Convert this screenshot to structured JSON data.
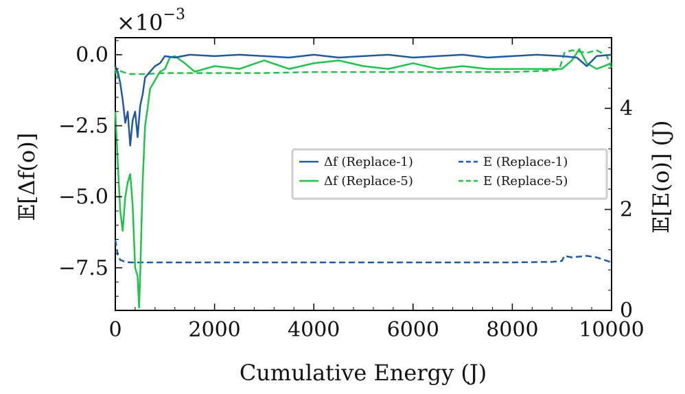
{
  "chart_data": {
    "type": "line",
    "title": "",
    "xlabel": "Cumulative Energy (J)",
    "ylabel_left": "𝔼[Δf(o)]",
    "ylabel_right": "𝔼[E(o)] (J)",
    "y_left_multiplier": "×10",
    "y_left_multiplier_exp": "−3",
    "xlim": [
      0,
      10000
    ],
    "ylim_left": [
      -9.0,
      0.6
    ],
    "ylim_right": [
      0,
      5.4
    ],
    "x_ticks": [
      0,
      2000,
      4000,
      6000,
      8000,
      10000
    ],
    "x_tick_labels": [
      "0",
      "2000",
      "4000",
      "6000",
      "8000",
      "10000"
    ],
    "y_left_ticks": [
      0.0,
      -2.5,
      -5.0,
      -7.5
    ],
    "y_left_tick_labels": [
      "0.0",
      "−2.5",
      "−5.0",
      "−7.5"
    ],
    "y_right_ticks": [
      0,
      2,
      4
    ],
    "y_right_tick_labels": [
      "0",
      "2",
      "4"
    ],
    "legend": {
      "position": "center-right",
      "entries": [
        {
          "label": "Δf (Replace-1)",
          "series": "df_r1"
        },
        {
          "label": "E (Replace-1)",
          "series": "e_r1"
        },
        {
          "label": "Δf (Replace-5)",
          "series": "df_r5"
        },
        {
          "label": "E (Replace-5)",
          "series": "e_r5"
        }
      ]
    },
    "series": [
      {
        "id": "df_r1",
        "name": "Δf (Replace-1)",
        "axis": "left",
        "style": "solid",
        "color": "#1f5aa0",
        "x": [
          0,
          50,
          100,
          150,
          200,
          250,
          300,
          350,
          400,
          450,
          500,
          550,
          600,
          650,
          700,
          800,
          900,
          1000,
          1200,
          1500,
          2000,
          2500,
          3000,
          3500,
          4000,
          4500,
          5000,
          5500,
          6000,
          6500,
          7000,
          7500,
          8000,
          8500,
          9000,
          9300,
          9500,
          9700,
          10000
        ],
        "y": [
          -0.4,
          -0.6,
          -1.0,
          -1.6,
          -2.4,
          -2.0,
          -3.2,
          -2.3,
          -2.0,
          -2.9,
          -1.8,
          -1.4,
          -0.8,
          -0.7,
          -0.6,
          -0.4,
          -0.3,
          -0.05,
          -0.1,
          0.0,
          -0.05,
          0.0,
          -0.05,
          -0.1,
          0.0,
          -0.1,
          -0.05,
          0.0,
          -0.1,
          -0.05,
          0.0,
          -0.1,
          -0.05,
          0.0,
          -0.05,
          -0.1,
          -0.4,
          -0.05,
          0.0
        ]
      },
      {
        "id": "df_r5",
        "name": "Δf (Replace-5)",
        "axis": "left",
        "style": "solid",
        "color": "#1fc24a",
        "x": [
          0,
          50,
          100,
          150,
          200,
          250,
          300,
          350,
          400,
          450,
          480,
          500,
          550,
          600,
          650,
          700,
          800,
          900,
          1000,
          1100,
          1200,
          1400,
          1600,
          2000,
          2500,
          3000,
          3500,
          4000,
          4500,
          5000,
          5500,
          6000,
          6500,
          7000,
          7500,
          8000,
          8500,
          9000,
          9200,
          9350,
          9500,
          9700,
          10000
        ],
        "y": [
          -2.0,
          -3.8,
          -5.5,
          -6.2,
          -5.0,
          -4.5,
          -4.2,
          -5.3,
          -7.5,
          -7.8,
          -8.9,
          -7.8,
          -4.5,
          -2.5,
          -1.9,
          -1.2,
          -0.9,
          -0.6,
          -0.5,
          -0.1,
          -0.05,
          -0.3,
          -0.6,
          -0.4,
          -0.5,
          -0.2,
          -0.5,
          -0.3,
          -0.2,
          -0.4,
          -0.5,
          -0.3,
          -0.5,
          -0.4,
          -0.5,
          -0.5,
          -0.5,
          -0.5,
          -0.2,
          0.2,
          -0.3,
          -0.5,
          -0.3
        ]
      },
      {
        "id": "e_r1",
        "name": "E (Replace-1)",
        "axis": "right",
        "style": "dashed",
        "color": "#1f5aa0",
        "x": [
          0,
          50,
          100,
          200,
          300,
          500,
          1000,
          2000,
          3000,
          4000,
          5000,
          6000,
          7000,
          8000,
          8800,
          9000,
          9050,
          9200,
          9500,
          9700,
          10000
        ],
        "y": [
          1.4,
          1.1,
          1.0,
          0.96,
          0.95,
          0.95,
          0.95,
          0.95,
          0.95,
          0.95,
          0.95,
          0.95,
          0.95,
          0.95,
          0.96,
          0.98,
          1.08,
          1.05,
          1.08,
          1.05,
          0.95
        ]
      },
      {
        "id": "e_r5",
        "name": "E (Replace-5)",
        "axis": "right",
        "style": "dashed",
        "color": "#1fc24a",
        "x": [
          0,
          30,
          80,
          150,
          300,
          600,
          1000,
          2000,
          3000,
          4000,
          5000,
          6000,
          7000,
          8000,
          8800,
          8950,
          9050,
          9200,
          9500,
          9700,
          9900,
          10000
        ],
        "y": [
          4.8,
          4.6,
          4.75,
          4.72,
          4.68,
          4.68,
          4.7,
          4.7,
          4.7,
          4.72,
          4.72,
          4.72,
          4.72,
          4.72,
          4.75,
          4.78,
          5.1,
          5.15,
          5.1,
          5.15,
          5.05,
          4.8
        ]
      }
    ]
  }
}
